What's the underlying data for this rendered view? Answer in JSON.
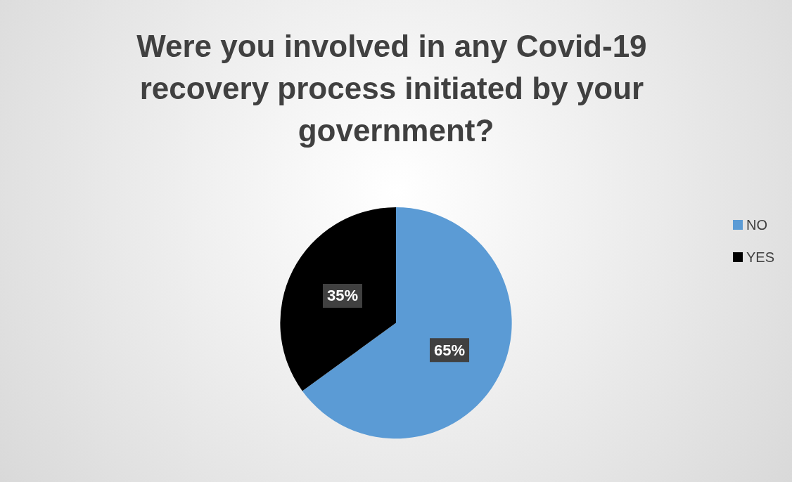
{
  "chart_data": {
    "type": "pie",
    "title": "Were you involved in any Covid-19 recovery process initiated by your government?",
    "categories": [
      "NO",
      "YES"
    ],
    "values": [
      65,
      35
    ],
    "colors": [
      "#5b9bd5",
      "#000000"
    ],
    "value_labels": [
      "65%",
      "35%"
    ],
    "legend": "right"
  }
}
